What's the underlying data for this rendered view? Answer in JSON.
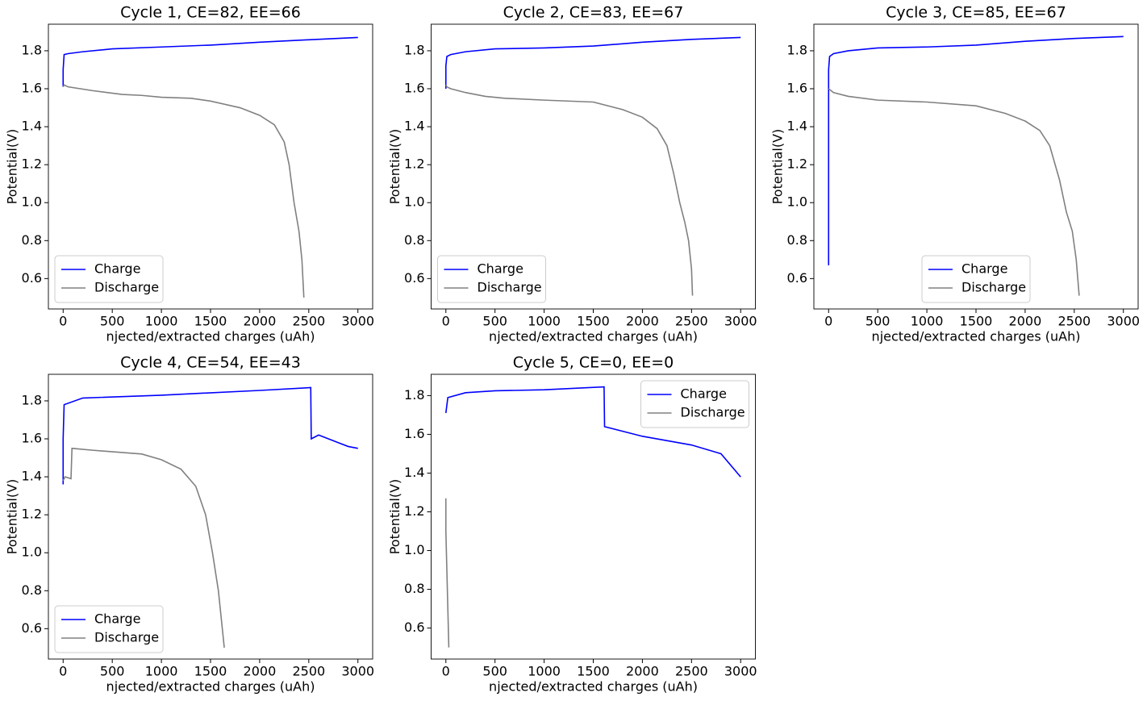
{
  "chart_data": [
    {
      "type": "line",
      "title": "Cycle 1, CE=82, EE=66",
      "xlabel": "njected/extracted charges (uAh)",
      "ylabel": "Potential(V)",
      "xlim": [
        -150,
        3150
      ],
      "ylim": [
        0.44,
        1.94
      ],
      "xticks": [
        0,
        500,
        1000,
        1500,
        2000,
        2500,
        3000
      ],
      "yticks": [
        0.6,
        0.8,
        {
          "value": 1,
          "label": "1.0"
        },
        1.2,
        1.4,
        1.6,
        1.8
      ],
      "legend": "lower left",
      "series": [
        {
          "name": "Charge",
          "color": "#0000ff",
          "x": [
            0,
            0,
            10,
            50,
            200,
            500,
            1000,
            1500,
            2000,
            2500,
            3000
          ],
          "values": [
            1.61,
            1.7,
            1.78,
            1.785,
            1.795,
            1.81,
            1.82,
            1.83,
            1.845,
            1.858,
            1.87
          ]
        },
        {
          "name": "Discharge",
          "color": "#808080",
          "x": [
            0,
            10,
            50,
            300,
            600,
            800,
            1000,
            1300,
            1500,
            1800,
            2000,
            2150,
            2250,
            2300,
            2350,
            2400,
            2430,
            2450
          ],
          "values": [
            1.61,
            1.62,
            1.61,
            1.59,
            1.57,
            1.565,
            1.555,
            1.55,
            1.535,
            1.5,
            1.46,
            1.41,
            1.32,
            1.2,
            1.0,
            0.85,
            0.7,
            0.5
          ]
        }
      ]
    },
    {
      "type": "line",
      "title": "Cycle 2, CE=83, EE=67",
      "xlabel": "njected/extracted charges (uAh)",
      "ylabel": "Potential(V)",
      "xlim": [
        -150,
        3150
      ],
      "ylim": [
        0.44,
        1.94
      ],
      "xticks": [
        0,
        500,
        1000,
        1500,
        2000,
        2500,
        3000
      ],
      "yticks": [
        0.6,
        0.8,
        {
          "value": 1,
          "label": "1.0"
        },
        1.2,
        1.4,
        1.6,
        1.8
      ],
      "legend": "lower left",
      "series": [
        {
          "name": "Charge",
          "color": "#0000ff",
          "x": [
            0,
            0,
            10,
            50,
            200,
            500,
            1000,
            1500,
            2000,
            2500,
            3000
          ],
          "values": [
            1.6,
            1.72,
            1.77,
            1.78,
            1.795,
            1.81,
            1.815,
            1.825,
            1.845,
            1.86,
            1.87
          ]
        },
        {
          "name": "Discharge",
          "color": "#808080",
          "x": [
            0,
            10,
            50,
            200,
            400,
            600,
            1000,
            1500,
            1800,
            2000,
            2150,
            2250,
            2320,
            2380,
            2430,
            2470,
            2500,
            2510
          ],
          "values": [
            1.62,
            1.61,
            1.6,
            1.58,
            1.56,
            1.55,
            1.54,
            1.53,
            1.49,
            1.45,
            1.39,
            1.3,
            1.15,
            1.0,
            0.9,
            0.8,
            0.65,
            0.51
          ]
        }
      ]
    },
    {
      "type": "line",
      "title": "Cycle 3, CE=85, EE=67",
      "xlabel": "njected/extracted charges (uAh)",
      "ylabel": "Potential(V)",
      "xlim": [
        -150,
        3150
      ],
      "ylim": [
        0.44,
        1.94
      ],
      "xticks": [
        0,
        500,
        1000,
        1500,
        2000,
        2500,
        3000
      ],
      "yticks": [
        0.6,
        0.8,
        {
          "value": 1,
          "label": "1.0"
        },
        1.2,
        1.4,
        1.6,
        1.8
      ],
      "legend": "lower center",
      "series": [
        {
          "name": "Charge",
          "color": "#0000ff",
          "x": [
            0,
            0,
            10,
            50,
            200,
            500,
            1000,
            1500,
            2000,
            2500,
            3000
          ],
          "values": [
            0.67,
            1.7,
            1.77,
            1.785,
            1.8,
            1.815,
            1.82,
            1.83,
            1.85,
            1.865,
            1.875
          ]
        },
        {
          "name": "Discharge",
          "color": "#808080",
          "x": [
            0,
            50,
            200,
            500,
            1000,
            1500,
            1800,
            2000,
            2150,
            2250,
            2350,
            2420,
            2480,
            2520,
            2550
          ],
          "values": [
            1.6,
            1.58,
            1.56,
            1.54,
            1.53,
            1.51,
            1.47,
            1.43,
            1.38,
            1.3,
            1.12,
            0.95,
            0.85,
            0.7,
            0.51
          ]
        }
      ]
    },
    {
      "type": "line",
      "title": "Cycle 4, CE=54, EE=43",
      "xlabel": "njected/extracted charges (uAh)",
      "ylabel": "Potential(V)",
      "xlim": [
        -150,
        3150
      ],
      "ylim": [
        0.44,
        1.94
      ],
      "xticks": [
        0,
        500,
        1000,
        1500,
        2000,
        2500,
        3000
      ],
      "yticks": [
        0.6,
        0.8,
        {
          "value": 1,
          "label": "1.0"
        },
        1.2,
        1.4,
        1.6,
        1.8
      ],
      "legend": "lower left",
      "series": [
        {
          "name": "Charge",
          "color": "#0000ff",
          "x": [
            0,
            0,
            10,
            200,
            1000,
            2000,
            2520,
            2525,
            2600,
            2700,
            2800,
            2900,
            3000
          ],
          "values": [
            1.36,
            1.6,
            1.78,
            1.815,
            1.83,
            1.855,
            1.87,
            1.6,
            1.62,
            1.6,
            1.58,
            1.56,
            1.55
          ]
        },
        {
          "name": "Discharge",
          "color": "#808080",
          "x": [
            0,
            20,
            80,
            90,
            300,
            800,
            1000,
            1200,
            1350,
            1450,
            1520,
            1580,
            1620,
            1640
          ],
          "values": [
            1.38,
            1.4,
            1.39,
            1.55,
            1.54,
            1.52,
            1.49,
            1.44,
            1.35,
            1.2,
            1.0,
            0.8,
            0.6,
            0.5
          ]
        }
      ]
    },
    {
      "type": "line",
      "title": "Cycle 5, CE=0, EE=0",
      "xlabel": "njected/extracted charges (uAh)",
      "ylabel": "Potential(V)",
      "xlim": [
        -150,
        3150
      ],
      "ylim": [
        0.44,
        1.91
      ],
      "xticks": [
        0,
        500,
        1000,
        1500,
        2000,
        2500,
        3000
      ],
      "yticks": [
        0.6,
        0.8,
        {
          "value": 1,
          "label": "1.0"
        },
        1.2,
        1.4,
        1.6,
        1.8
      ],
      "legend": "upper right",
      "series": [
        {
          "name": "Charge",
          "color": "#0000ff",
          "x": [
            0,
            20,
            200,
            500,
            1000,
            1610,
            1615,
            2000,
            2500,
            2800,
            3000
          ],
          "values": [
            1.71,
            1.79,
            1.815,
            1.825,
            1.83,
            1.845,
            1.64,
            1.59,
            1.545,
            1.5,
            1.38
          ]
        },
        {
          "name": "Discharge",
          "color": "#808080",
          "x": [
            0,
            0,
            20,
            30
          ],
          "values": [
            1.27,
            1.1,
            0.7,
            0.5
          ]
        }
      ]
    }
  ]
}
